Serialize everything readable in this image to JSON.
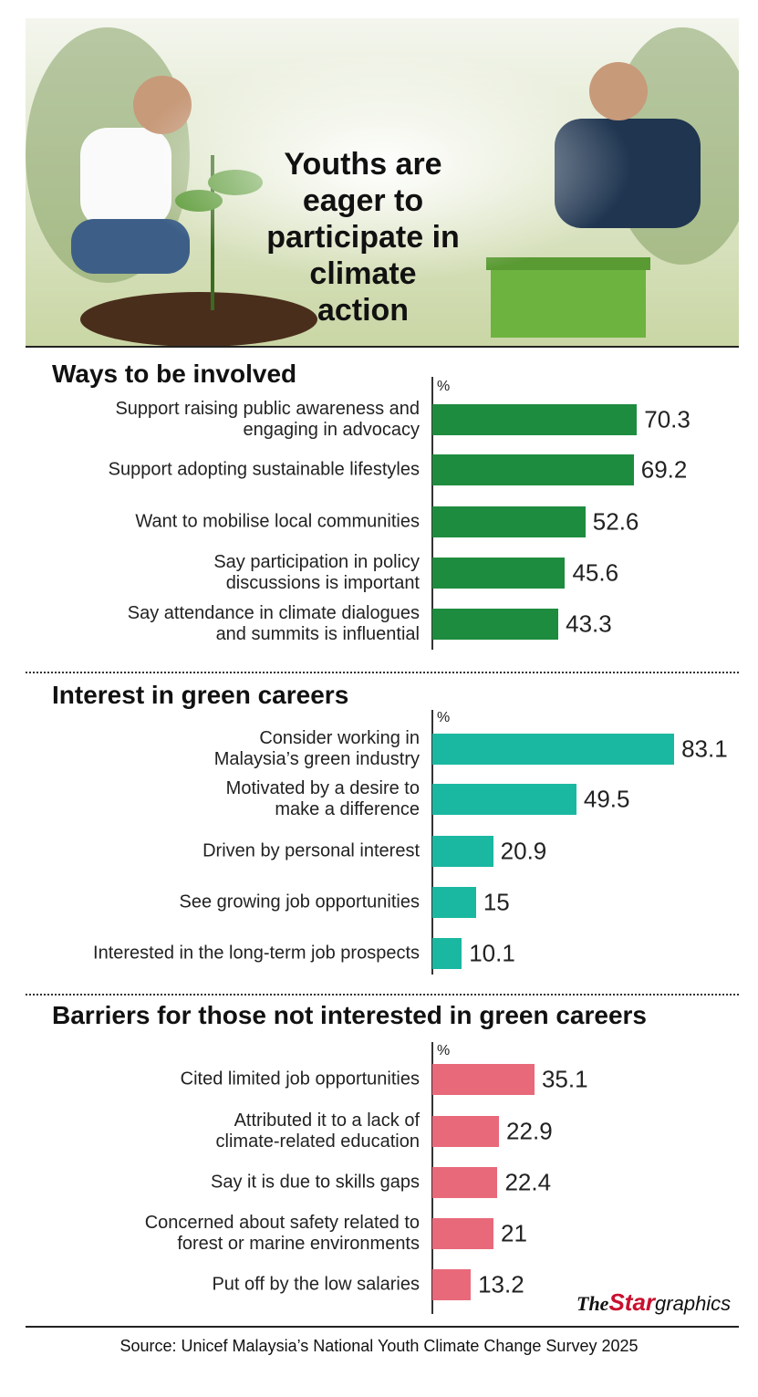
{
  "title": "Youths are\neager to\nparticipate in\nclimate\naction",
  "chart_data": [
    {
      "type": "bar",
      "orientation": "horizontal",
      "title": "Ways to be involved",
      "unit": "%",
      "color": "#1e8c3e",
      "categories": [
        "Support raising public awareness and\nengaging in advocacy",
        "Support adopting sustainable lifestyles",
        "Want to mobilise local communities",
        "Say participation in policy\ndiscussions is important",
        "Say attendance in climate dialogues\nand summits is influential"
      ],
      "values": [
        70.3,
        69.2,
        52.6,
        45.6,
        43.3
      ]
    },
    {
      "type": "bar",
      "orientation": "horizontal",
      "title": "Interest in green careers",
      "unit": "%",
      "color": "#1ab8a0",
      "categories": [
        "Consider working in\nMalaysia’s green industry",
        "Motivated by a desire to\nmake a difference",
        "Driven by personal interest",
        "See growing job opportunities",
        "Interested in the long-term job prospects"
      ],
      "values": [
        83.1,
        49.5,
        20.9,
        15,
        10.1
      ]
    },
    {
      "type": "bar",
      "orientation": "horizontal",
      "title": "Barriers for those not interested in green careers",
      "unit": "%",
      "color": "#e8697a",
      "categories": [
        "Cited limited job opportunities",
        "Attributed it to a lack of\nclimate-related education",
        "Say it is due to skills gaps",
        "Concerned about safety related to\nforest or marine environments",
        "Put off by the low salaries"
      ],
      "values": [
        35.1,
        22.9,
        22.4,
        21,
        13.2
      ]
    }
  ],
  "credit": {
    "the": "The",
    "star": "Star",
    "graphics": "graphics"
  },
  "source": "Source: Unicef Malaysia’s National Youth Climate Change Survey 2025"
}
